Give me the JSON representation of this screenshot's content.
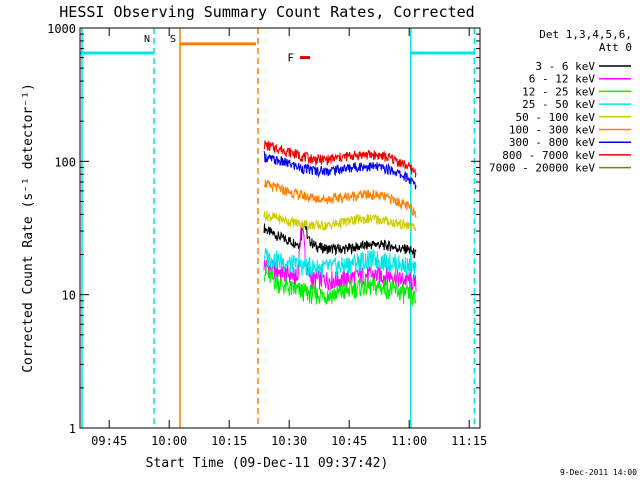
{
  "chart_data": {
    "type": "line",
    "title": "HESSI Observing Summary Count Rates, Corrected",
    "xlabel": "Start Time (09-Dec-11 09:37:42)",
    "ylabel": "Corrected Count Rate (s⁻¹ detector⁻¹)",
    "x_unit": "minutes after 09:37:42",
    "xlim": [
      0,
      100
    ],
    "ylim": [
      1,
      1000
    ],
    "yscale": "log",
    "grid": false,
    "legend_position": "top-right",
    "legend_title": [
      "Det 1,3,4,5,6,",
      "Att 0"
    ],
    "xticks": [
      {
        "label": "09:45",
        "value": 7.3
      },
      {
        "label": "10:00",
        "value": 22.3
      },
      {
        "label": "10:15",
        "value": 37.3
      },
      {
        "label": "10:30",
        "value": 52.3
      },
      {
        "label": "10:45",
        "value": 67.3
      },
      {
        "label": "11:00",
        "value": 82.3
      },
      {
        "label": "11:15",
        "value": 97.3
      }
    ],
    "yticks": [
      {
        "label": "1",
        "value": 1
      },
      {
        "label": "10",
        "value": 10
      },
      {
        "label": "100",
        "value": 100
      },
      {
        "label": "1000",
        "value": 1000
      }
    ],
    "markers": [
      {
        "label": "N",
        "x": 18.5,
        "color": "#00e5e5",
        "style": "dashed"
      },
      {
        "label": "S",
        "x": 25.0,
        "color": "#ff8000",
        "style": "solid"
      },
      {
        "label": "",
        "x": 44.5,
        "color": "#ff8000",
        "style": "dashed"
      },
      {
        "label": "",
        "x": 82.7,
        "color": "#00e5e5",
        "style": "solid"
      },
      {
        "label": "",
        "x": 98.6,
        "color": "#00e5e5",
        "style": "dashed"
      },
      {
        "label": "",
        "x": 0.5,
        "color": "#00e5e5",
        "style": "solid"
      }
    ],
    "bars": [
      {
        "name": "night",
        "x0": 0,
        "x1": 18.5,
        "y": 650,
        "color": "#00e5e5"
      },
      {
        "name": "night2",
        "x0": 82.7,
        "x1": 98.6,
        "y": 650,
        "color": "#00e5e5"
      },
      {
        "name": "saa",
        "x0": 25.0,
        "x1": 44.0,
        "y": 760,
        "color": "#ff8000"
      },
      {
        "name": "flare",
        "label": "F",
        "x0": 55.0,
        "x1": 57.5,
        "y": 600,
        "color": "#dd0000"
      }
    ],
    "series": [
      {
        "name": "3 - 6 keV",
        "color": "#000000",
        "x": [
          46,
          47,
          50,
          53,
          55,
          56,
          57,
          59,
          62,
          66,
          70,
          74,
          78,
          80,
          82,
          84
        ],
        "y": [
          32,
          30,
          27,
          25,
          24,
          36,
          26,
          23,
          22,
          22,
          23,
          24,
          23,
          22,
          22,
          20
        ]
      },
      {
        "name": "6 - 12 keV",
        "color": "#ff00ff",
        "x": [
          46,
          47,
          50,
          53,
          54.5,
          55.5,
          56.5,
          58,
          62,
          66,
          70,
          74,
          78,
          80,
          82,
          84
        ],
        "y": [
          17,
          16,
          15,
          14,
          13,
          36,
          16,
          13,
          13,
          13,
          14,
          14,
          14,
          13,
          13,
          12
        ]
      },
      {
        "name": "12 - 25 keV",
        "color": "#00ee00",
        "x": [
          46,
          47,
          50,
          53,
          56,
          59,
          62,
          66,
          70,
          74,
          78,
          80,
          82,
          84
        ],
        "y": [
          15,
          14,
          12,
          11,
          10.5,
          10,
          10,
          10.5,
          11.5,
          11.5,
          11,
          10.5,
          10,
          9
        ]
      },
      {
        "name": "25 - 50 keV",
        "color": "#00e5e5",
        "x": [
          46,
          47,
          50,
          53,
          56,
          59,
          62,
          66,
          70,
          74,
          78,
          80,
          82,
          84
        ],
        "y": [
          20,
          19,
          18,
          17,
          16.5,
          16,
          16,
          16.5,
          18,
          18.5,
          17.5,
          17,
          16.5,
          15
        ]
      },
      {
        "name": "50 - 100 keV",
        "color": "#cccc00",
        "x": [
          46,
          47,
          50,
          53,
          56,
          59,
          62,
          66,
          70,
          74,
          78,
          80,
          82,
          84
        ],
        "y": [
          40,
          39,
          37,
          35,
          34,
          33,
          33,
          35,
          37,
          37,
          35,
          34,
          33,
          31
        ]
      },
      {
        "name": "100 - 300 keV",
        "color": "#ff8000",
        "x": [
          46,
          47,
          50,
          53,
          56,
          59,
          62,
          66,
          70,
          74,
          78,
          80,
          82,
          84
        ],
        "y": [
          70,
          66,
          62,
          58,
          55,
          53,
          52,
          54,
          56,
          56,
          52,
          49,
          46,
          41
        ]
      },
      {
        "name": "300 - 800 keV",
        "color": "#0000ee",
        "x": [
          46,
          47,
          50,
          53,
          56,
          59,
          62,
          66,
          70,
          74,
          78,
          80,
          82,
          84
        ],
        "y": [
          110,
          105,
          100,
          94,
          88,
          85,
          85,
          88,
          92,
          91,
          86,
          80,
          75,
          65
        ]
      },
      {
        "name": "800 - 7000 keV",
        "color": "#ee0000",
        "x": [
          46,
          47,
          50,
          53,
          56,
          59,
          62,
          66,
          70,
          74,
          78,
          80,
          82,
          84
        ],
        "y": [
          135,
          130,
          124,
          116,
          108,
          103,
          103,
          108,
          112,
          112,
          105,
          98,
          92,
          82
        ]
      },
      {
        "name": "7000 - 20000 keV",
        "color": "#808000",
        "x": [],
        "y": []
      }
    ],
    "footer_date": "9-Dec-2011 14:00"
  }
}
